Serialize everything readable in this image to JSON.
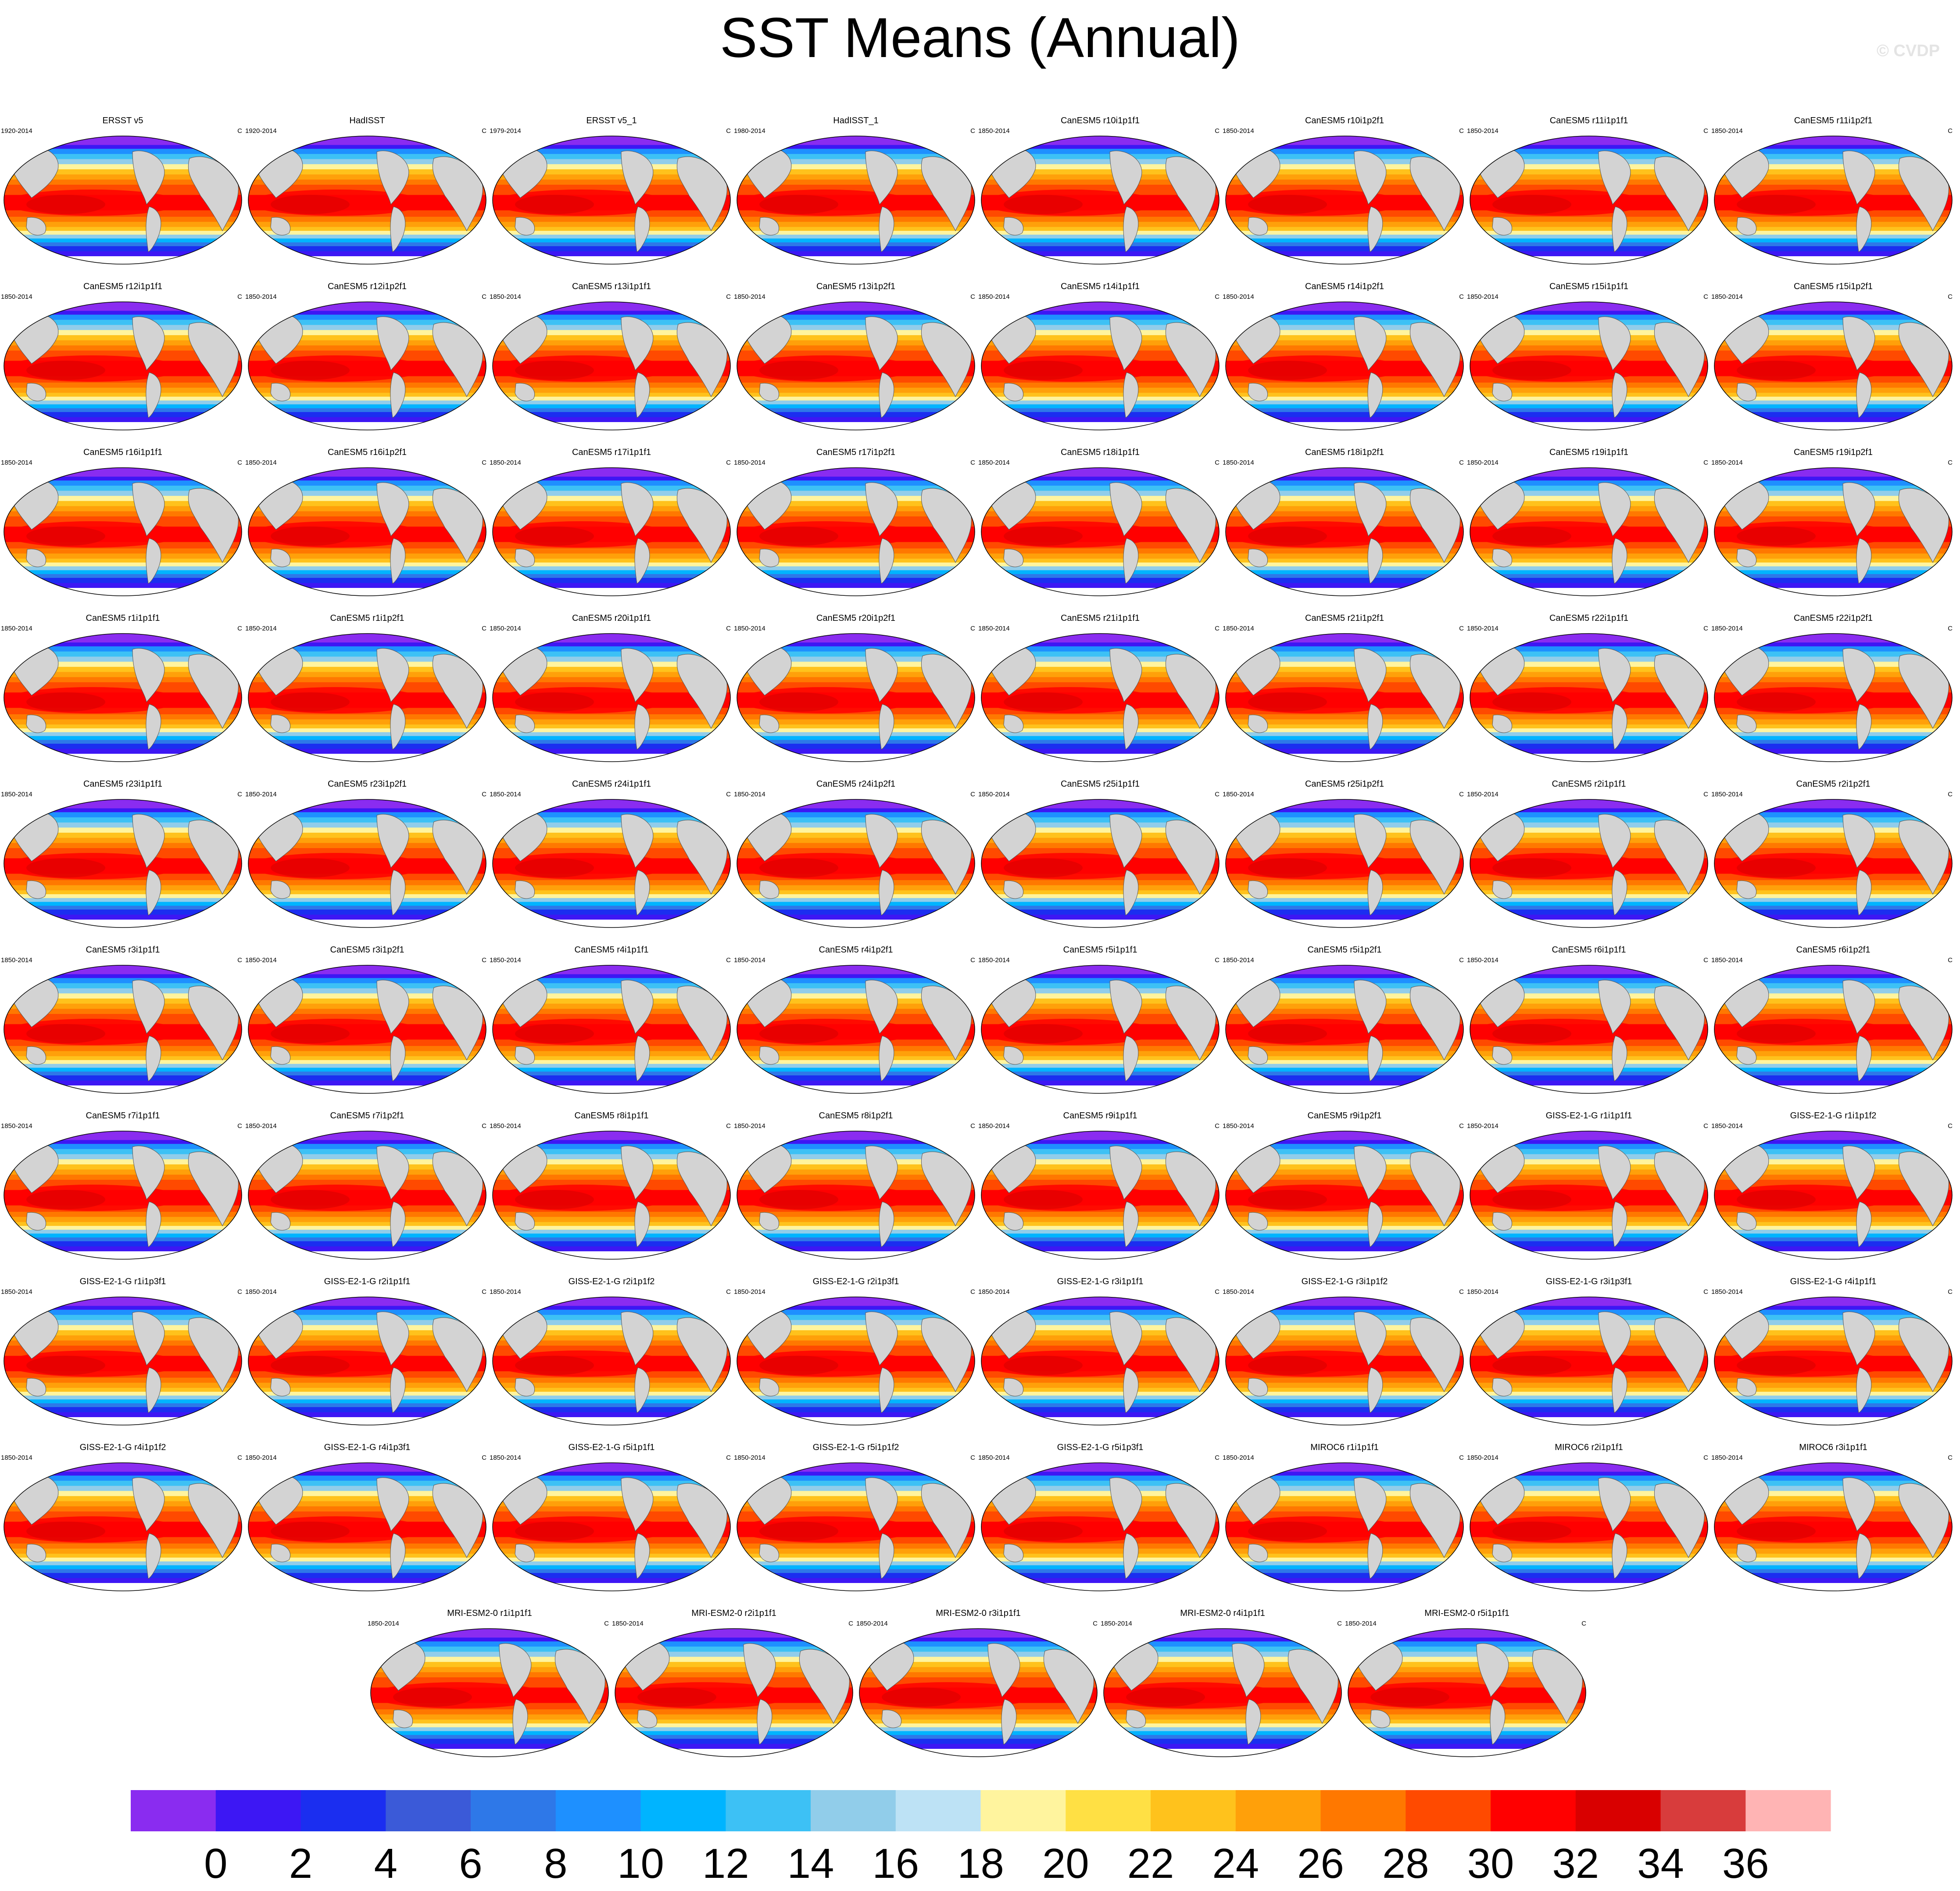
{
  "title": "SST Means (Annual)",
  "credit": "© CVDP",
  "units": "C",
  "panels": [
    {
      "name": "ERSST v5",
      "period": "1920-2014"
    },
    {
      "name": "HadISST",
      "period": "1920-2014"
    },
    {
      "name": "ERSST v5_1",
      "period": "1979-2014"
    },
    {
      "name": "HadISST_1",
      "period": "1980-2014"
    },
    {
      "name": "CanESM5 r10i1p1f1",
      "period": "1850-2014"
    },
    {
      "name": "CanESM5 r10i1p2f1",
      "period": "1850-2014"
    },
    {
      "name": "CanESM5 r11i1p1f1",
      "period": "1850-2014"
    },
    {
      "name": "CanESM5 r11i1p2f1",
      "period": "1850-2014"
    },
    {
      "name": "CanESM5 r12i1p1f1",
      "period": "1850-2014"
    },
    {
      "name": "CanESM5 r12i1p2f1",
      "period": "1850-2014"
    },
    {
      "name": "CanESM5 r13i1p1f1",
      "period": "1850-2014"
    },
    {
      "name": "CanESM5 r13i1p2f1",
      "period": "1850-2014"
    },
    {
      "name": "CanESM5 r14i1p1f1",
      "period": "1850-2014"
    },
    {
      "name": "CanESM5 r14i1p2f1",
      "period": "1850-2014"
    },
    {
      "name": "CanESM5 r15i1p1f1",
      "period": "1850-2014"
    },
    {
      "name": "CanESM5 r15i1p2f1",
      "period": "1850-2014"
    },
    {
      "name": "CanESM5 r16i1p1f1",
      "period": "1850-2014"
    },
    {
      "name": "CanESM5 r16i1p2f1",
      "period": "1850-2014"
    },
    {
      "name": "CanESM5 r17i1p1f1",
      "period": "1850-2014"
    },
    {
      "name": "CanESM5 r17i1p2f1",
      "period": "1850-2014"
    },
    {
      "name": "CanESM5 r18i1p1f1",
      "period": "1850-2014"
    },
    {
      "name": "CanESM5 r18i1p2f1",
      "period": "1850-2014"
    },
    {
      "name": "CanESM5 r19i1p1f1",
      "period": "1850-2014"
    },
    {
      "name": "CanESM5 r19i1p2f1",
      "period": "1850-2014"
    },
    {
      "name": "CanESM5 r1i1p1f1",
      "period": "1850-2014"
    },
    {
      "name": "CanESM5 r1i1p2f1",
      "period": "1850-2014"
    },
    {
      "name": "CanESM5 r20i1p1f1",
      "period": "1850-2014"
    },
    {
      "name": "CanESM5 r20i1p2f1",
      "period": "1850-2014"
    },
    {
      "name": "CanESM5 r21i1p1f1",
      "period": "1850-2014"
    },
    {
      "name": "CanESM5 r21i1p2f1",
      "period": "1850-2014"
    },
    {
      "name": "CanESM5 r22i1p1f1",
      "period": "1850-2014"
    },
    {
      "name": "CanESM5 r22i1p2f1",
      "period": "1850-2014"
    },
    {
      "name": "CanESM5 r23i1p1f1",
      "period": "1850-2014"
    },
    {
      "name": "CanESM5 r23i1p2f1",
      "period": "1850-2014"
    },
    {
      "name": "CanESM5 r24i1p1f1",
      "period": "1850-2014"
    },
    {
      "name": "CanESM5 r24i1p2f1",
      "period": "1850-2014"
    },
    {
      "name": "CanESM5 r25i1p1f1",
      "period": "1850-2014"
    },
    {
      "name": "CanESM5 r25i1p2f1",
      "period": "1850-2014"
    },
    {
      "name": "CanESM5 r2i1p1f1",
      "period": "1850-2014"
    },
    {
      "name": "CanESM5 r2i1p2f1",
      "period": "1850-2014"
    },
    {
      "name": "CanESM5 r3i1p1f1",
      "period": "1850-2014"
    },
    {
      "name": "CanESM5 r3i1p2f1",
      "period": "1850-2014"
    },
    {
      "name": "CanESM5 r4i1p1f1",
      "period": "1850-2014"
    },
    {
      "name": "CanESM5 r4i1p2f1",
      "period": "1850-2014"
    },
    {
      "name": "CanESM5 r5i1p1f1",
      "period": "1850-2014"
    },
    {
      "name": "CanESM5 r5i1p2f1",
      "period": "1850-2014"
    },
    {
      "name": "CanESM5 r6i1p1f1",
      "period": "1850-2014"
    },
    {
      "name": "CanESM5 r6i1p2f1",
      "period": "1850-2014"
    },
    {
      "name": "CanESM5 r7i1p1f1",
      "period": "1850-2014"
    },
    {
      "name": "CanESM5 r7i1p2f1",
      "period": "1850-2014"
    },
    {
      "name": "CanESM5 r8i1p1f1",
      "period": "1850-2014"
    },
    {
      "name": "CanESM5 r8i1p2f1",
      "period": "1850-2014"
    },
    {
      "name": "CanESM5 r9i1p1f1",
      "period": "1850-2014"
    },
    {
      "name": "CanESM5 r9i1p2f1",
      "period": "1850-2014"
    },
    {
      "name": "GISS-E2-1-G r1i1p1f1",
      "period": "1850-2014"
    },
    {
      "name": "GISS-E2-1-G r1i1p1f2",
      "period": "1850-2014"
    },
    {
      "name": "GISS-E2-1-G r1i1p3f1",
      "period": "1850-2014"
    },
    {
      "name": "GISS-E2-1-G r2i1p1f1",
      "period": "1850-2014"
    },
    {
      "name": "GISS-E2-1-G r2i1p1f2",
      "period": "1850-2014"
    },
    {
      "name": "GISS-E2-1-G r2i1p3f1",
      "period": "1850-2014"
    },
    {
      "name": "GISS-E2-1-G r3i1p1f1",
      "period": "1850-2014"
    },
    {
      "name": "GISS-E2-1-G r3i1p1f2",
      "period": "1850-2014"
    },
    {
      "name": "GISS-E2-1-G r3i1p3f1",
      "period": "1850-2014"
    },
    {
      "name": "GISS-E2-1-G r4i1p1f1",
      "period": "1850-2014"
    },
    {
      "name": "GISS-E2-1-G r4i1p1f2",
      "period": "1850-2014"
    },
    {
      "name": "GISS-E2-1-G r4i1p3f1",
      "period": "1850-2014"
    },
    {
      "name": "GISS-E2-1-G r5i1p1f1",
      "period": "1850-2014"
    },
    {
      "name": "GISS-E2-1-G r5i1p1f2",
      "period": "1850-2014"
    },
    {
      "name": "GISS-E2-1-G r5i1p3f1",
      "period": "1850-2014"
    },
    {
      "name": "MIROC6 r1i1p1f1",
      "period": "1850-2014"
    },
    {
      "name": "MIROC6 r2i1p1f1",
      "period": "1850-2014"
    },
    {
      "name": "MIROC6 r3i1p1f1",
      "period": "1850-2014"
    },
    {
      "name": "MRI-ESM2-0 r1i1p1f1",
      "period": "1850-2014"
    },
    {
      "name": "MRI-ESM2-0 r2i1p1f1",
      "period": "1850-2014"
    },
    {
      "name": "MRI-ESM2-0 r3i1p1f1",
      "period": "1850-2014"
    },
    {
      "name": "MRI-ESM2-0 r4i1p1f1",
      "period": "1850-2014"
    },
    {
      "name": "MRI-ESM2-0 r5i1p1f1",
      "period": "1850-2014"
    }
  ],
  "colorbar": {
    "colors": [
      "#8a2cf0",
      "#3d17f4",
      "#1b2ef0",
      "#3b5ad8",
      "#2e78e8",
      "#1e90ff",
      "#00b4ff",
      "#3dc1f5",
      "#91cdea",
      "#bde2f5",
      "#fff49e",
      "#ffe044",
      "#ffc21c",
      "#ffa00a",
      "#ff7800",
      "#ff4a00",
      "#ff0000",
      "#d90000",
      "#d83c3c",
      "#ffb4b4"
    ],
    "tick_labels": [
      "0",
      "2",
      "4",
      "6",
      "8",
      "10",
      "12",
      "14",
      "16",
      "18",
      "20",
      "22",
      "24",
      "26",
      "28",
      "30",
      "32",
      "34",
      "36"
    ]
  },
  "land_color": "#d3d3d3"
}
